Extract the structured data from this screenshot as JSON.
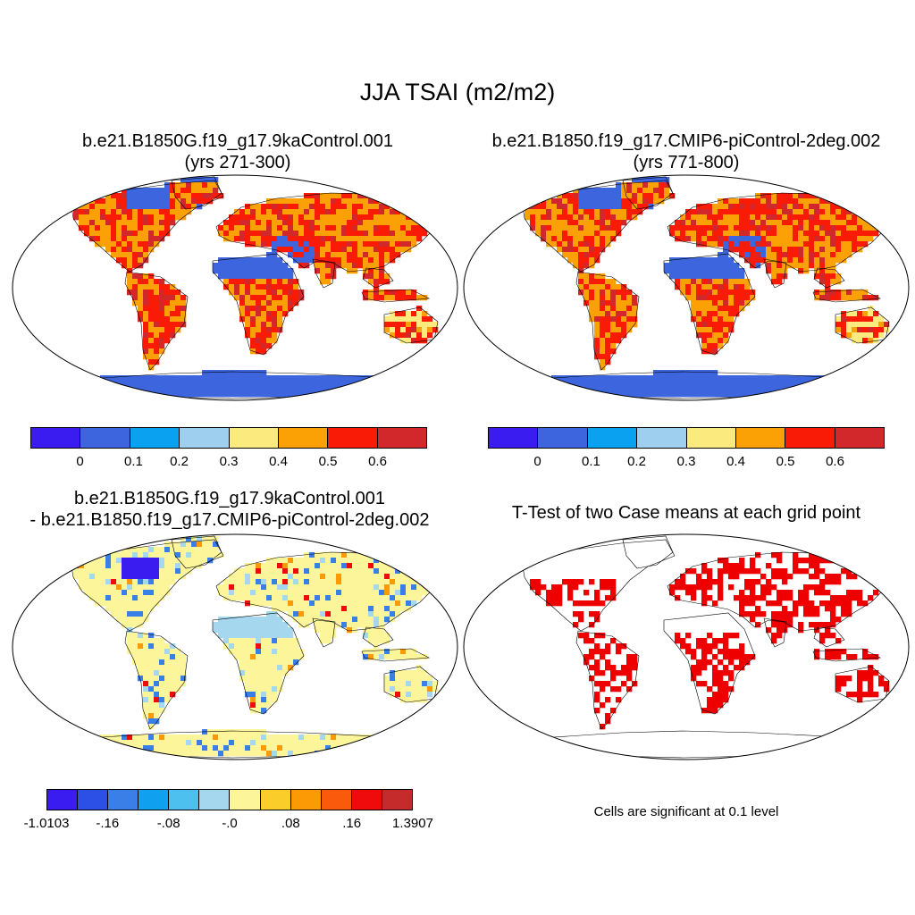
{
  "figure": {
    "title": "JJA TSAI (m2/m2)"
  },
  "panels": [
    {
      "title_line1": "b.e21.B1850G.f19_g17.9kaControl.001",
      "title_line2": "(yrs 271-300)"
    },
    {
      "title_line1": "b.e21.B1850.f19_g17.CMIP6-piControl-2deg.002",
      "title_line2": "(yrs 771-800)"
    },
    {
      "title_line1": "b.e21.B1850G.f19_g17.9kaControl.001",
      "title_line2": "- b.e21.B1850.f19_g17.CMIP6-piControl-2deg.002"
    },
    {
      "title_line1": "T-Test of two Case means at each grid point",
      "note": "Cells are significant at 0.1 level"
    }
  ],
  "colorbars": {
    "absolute": {
      "colors": [
        "#3b1cf0",
        "#3d66de",
        "#0aa2f0",
        "#9ecfef",
        "#fbeb7e",
        "#fba005",
        "#f91b05",
        "#d2282b"
      ],
      "tick_labels": [
        "0",
        "0.1",
        "0.2",
        "0.3",
        "0.4",
        "0.5",
        "0.6"
      ]
    },
    "difference": {
      "colors": [
        "#3b1cf0",
        "#2c4fe6",
        "#3a7ee8",
        "#0fa0f0",
        "#4ec0f0",
        "#a5d7ee",
        "#fdf59a",
        "#fbcd2a",
        "#fb9a05",
        "#f95a0c",
        "#ef0b0b",
        "#c62b2b"
      ],
      "tick_labels": [
        "-1.0103",
        "-.16",
        "-.08",
        "-.0",
        ".08",
        ".16",
        "1.3907"
      ]
    }
  },
  "map_colors": {
    "ocean": "#ffffff",
    "frame": "#000000",
    "ice": "#3d66de",
    "desert_low": "#3d66de",
    "diff_base": "#fdf59a",
    "significant": "#ee0000"
  },
  "projection": "Robinson"
}
